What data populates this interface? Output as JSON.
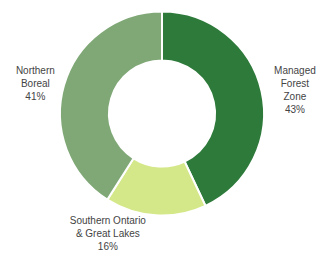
{
  "chart_data": {
    "type": "pie",
    "categories": [
      "Managed\nForest\nZone",
      "Southern Ontario\n& Great Lakes",
      "Northern\nBoreal"
    ],
    "values": [
      43,
      16,
      41
    ],
    "value_labels": [
      "43%",
      "16%",
      "41%"
    ],
    "colors": [
      "#2d7a3a",
      "#d4e88a",
      "#7fa876"
    ],
    "data_labels": true
  }
}
